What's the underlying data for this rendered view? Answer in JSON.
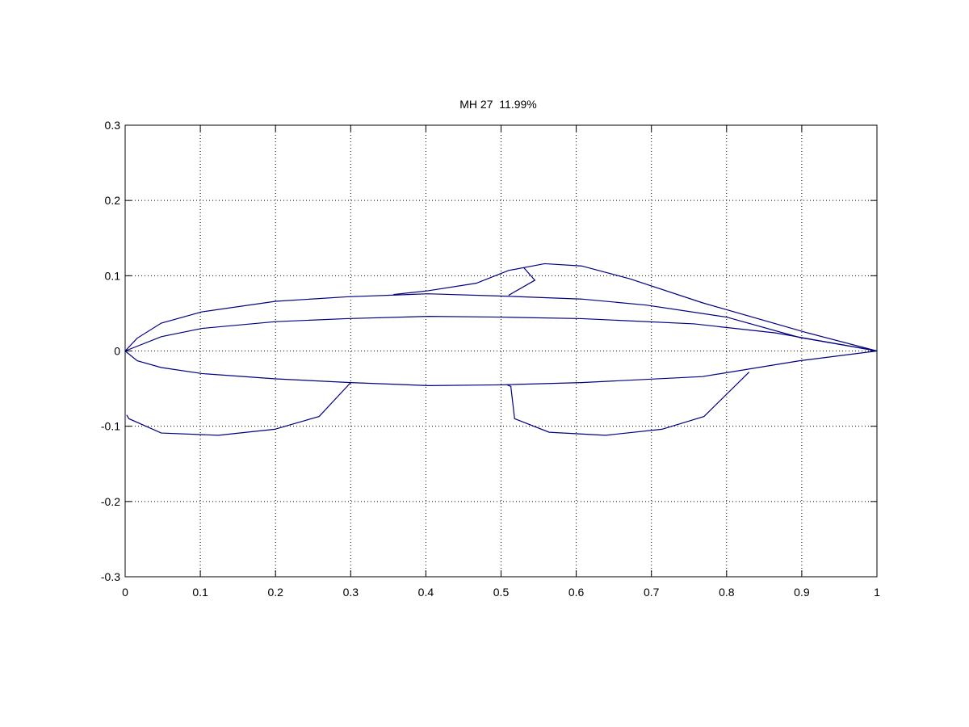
{
  "chart_data": {
    "type": "line",
    "title": "MH 27  11.99%",
    "xlim": [
      0,
      1
    ],
    "xticks": [
      0,
      0.1,
      0.2,
      0.3,
      0.4,
      0.5,
      0.6,
      0.7,
      0.8,
      0.9,
      1
    ],
    "ylim": [
      -0.3,
      0.3
    ],
    "yticks": [
      -0.3,
      -0.2,
      -0.1,
      0,
      0.1,
      0.2,
      0.3
    ],
    "grid": true,
    "series": [
      {
        "color": "#000080",
        "x": [
          0,
          0.016,
          0.048,
          0.102,
          0.2,
          0.295,
          0.403,
          0.5,
          0.607,
          0.693,
          0.8,
          0.897,
          0.972,
          1
        ],
        "values": [
          0,
          0.017,
          0.037,
          0.052,
          0.066,
          0.072,
          0.076,
          0.073,
          0.069,
          0.061,
          0.045,
          0.018,
          0.005,
          0
        ]
      },
      {
        "color": "#000080",
        "x": [
          0,
          0.048,
          0.102,
          0.2,
          0.295,
          0.403,
          0.5,
          0.607,
          0.757,
          0.865,
          0.961,
          1
        ],
        "values": [
          0,
          0.019,
          0.03,
          0.039,
          0.043,
          0.046,
          0.045,
          0.043,
          0.036,
          0.024,
          0.007,
          0
        ]
      },
      {
        "color": "#000080",
        "x": [
          0,
          0.016,
          0.048,
          0.102,
          0.2,
          0.3,
          0.403,
          0.5,
          0.607,
          0.768,
          0.897,
          1
        ],
        "values": [
          0,
          -0.013,
          -0.022,
          -0.03,
          -0.037,
          -0.042,
          -0.046,
          -0.045,
          -0.042,
          -0.034,
          -0.013,
          0
        ]
      },
      {
        "color": "#000080",
        "x": [
          0.357,
          0.403,
          0.467,
          0.51,
          0.558,
          0.607,
          0.671,
          0.768,
          0.908,
          1
        ],
        "values": [
          0.075,
          0.08,
          0.09,
          0.107,
          0.116,
          0.113,
          0.096,
          0.064,
          0.024,
          0
        ]
      },
      {
        "color": "#000080",
        "x": [
          0.53,
          0.545,
          0.51
        ],
        "values": [
          0.111,
          0.094,
          0.074
        ]
      },
      {
        "color": "#000080",
        "x": [
          0.3,
          0.258,
          0.199,
          0.124,
          0.048,
          0.005,
          0.002
        ],
        "values": [
          -0.042,
          -0.087,
          -0.104,
          -0.112,
          -0.109,
          -0.09,
          -0.085
        ]
      },
      {
        "color": "#000080",
        "x": [
          0.508,
          0.513,
          0.518,
          0.564,
          0.639,
          0.714,
          0.77,
          0.83
        ],
        "values": [
          -0.045,
          -0.047,
          -0.09,
          -0.108,
          -0.112,
          -0.104,
          -0.087,
          -0.028
        ]
      }
    ]
  }
}
